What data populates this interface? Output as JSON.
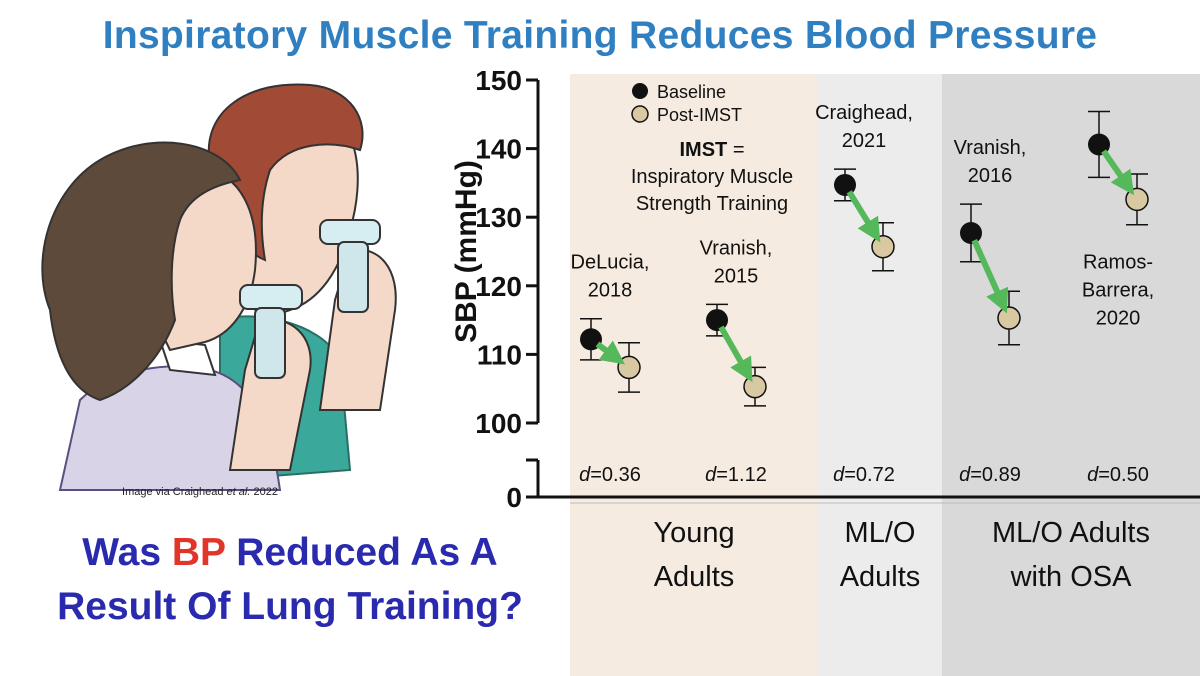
{
  "title": "Inspiratory Muscle Training Reduces Blood Pressure",
  "colors": {
    "title": "#2f7fc1",
    "question": "#2a2aae",
    "question_highlight": "#e2352a",
    "band_young": "#f6ebe0",
    "band_mlo": "#ececec",
    "band_osa": "#d9d9d9",
    "baseline": "#111111",
    "post": "#d8c9a3",
    "arrow": "#55b85a"
  },
  "illustration_credit": {
    "prefix": "Image via Craighead ",
    "italic": "et al.",
    "suffix": " 2022"
  },
  "question": {
    "line1_before": "Was ",
    "line1_highlight": "BP",
    "line1_after": " Reduced As A",
    "line2": "Result Of Lung Training?"
  },
  "chart_data": {
    "type": "scatter",
    "ylabel": "SBP (mmHg)",
    "ylim": [
      100,
      150
    ],
    "yticks": [
      100,
      110,
      120,
      130,
      140,
      150
    ],
    "ybreak_label": "0",
    "legend": [
      "Baseline",
      "Post-IMST"
    ],
    "legend_position": "top-left",
    "definition": {
      "bold": "IMST",
      "rest": " =",
      "line2": "Inspiratory Muscle",
      "line3": "Strength Training"
    },
    "groups": [
      {
        "label_line1": "Young",
        "label_line2": "Adults",
        "study_index_start": 0,
        "study_index_end": 1,
        "color_key": "band_young"
      },
      {
        "label_line1": "ML/O",
        "label_line2": "Adults",
        "study_index_start": 2,
        "study_index_end": 2,
        "color_key": "band_mlo"
      },
      {
        "label_line1": "ML/O Adults",
        "label_line2": "with OSA",
        "study_index_start": 3,
        "study_index_end": 4,
        "color_key": "band_osa"
      }
    ],
    "studies": [
      {
        "label_line1": "DeLucia,",
        "label_line2": "2018",
        "label_side": "above",
        "baseline": 112.2,
        "baseline_err": 3.0,
        "post": 108.1,
        "post_err": 3.6,
        "effect_size": "0.36"
      },
      {
        "label_line1": "Vranish,",
        "label_line2": "2015",
        "label_side": "above",
        "baseline": 115.0,
        "baseline_err": 2.3,
        "post": 105.3,
        "post_err": 2.8,
        "effect_size": "1.12"
      },
      {
        "label_line1": "Craighead,",
        "label_line2": "2021",
        "label_side": "above",
        "baseline": 134.7,
        "baseline_err": 2.3,
        "post": 125.7,
        "post_err": 3.5,
        "effect_size": "0.72"
      },
      {
        "label_line1": "Vranish,",
        "label_line2": "2016",
        "label_side": "above",
        "baseline": 127.7,
        "baseline_err": 4.2,
        "post": 115.3,
        "post_err": 3.9,
        "effect_size": "0.89"
      },
      {
        "label_line1": "Ramos-",
        "label_line2": "Barrera,",
        "label_line3": "2020",
        "label_side": "below",
        "baseline": 140.6,
        "baseline_err": 4.8,
        "post": 132.6,
        "post_err": 3.7,
        "effect_size": "0.50"
      }
    ],
    "effect_prefix": "d",
    "effect_sep": "="
  }
}
